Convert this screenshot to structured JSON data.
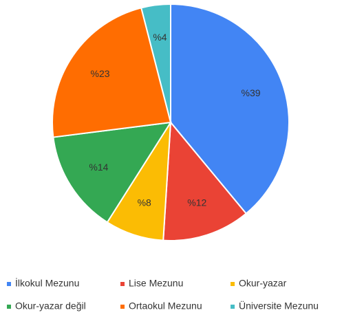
{
  "chart_data": {
    "type": "pie",
    "categories": [
      "İlkokul Mezunu",
      "Lise Mezunu",
      "Okur-yazar",
      "Okur-yazar değil",
      "Ortaokul Mezunu",
      "Üniversite Mezunu"
    ],
    "values": [
      39,
      12,
      8,
      14,
      23,
      4
    ],
    "value_labels": [
      "%39",
      "%12",
      "%8",
      "%14",
      "%23",
      "%4"
    ],
    "colors": [
      "#4285f4",
      "#ea4335",
      "#fbbc04",
      "#34a853",
      "#ff6d01",
      "#46bdc6"
    ],
    "legend": "bottom"
  }
}
